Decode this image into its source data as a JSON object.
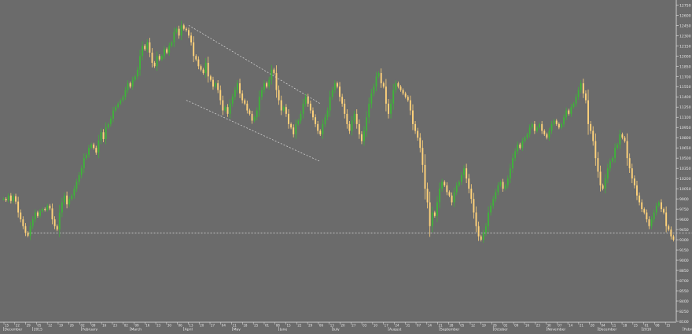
{
  "colors": {
    "background": "#6b6b6b",
    "up": "#3fb23a",
    "down": "#ffd27a",
    "axis": "#e8e8e8",
    "support_line": "#cfcfcf",
    "channel_line": "#cfcfcf"
  },
  "chart_data": {
    "type": "candlestick",
    "title": "",
    "xlabel": "",
    "ylabel": "",
    "grid": false,
    "legend": "none",
    "ylim": [
      8100,
      12800
    ],
    "y_ticks": [
      8100,
      8250,
      8400,
      8550,
      8700,
      8850,
      9000,
      9150,
      9300,
      9450,
      9600,
      9750,
      9900,
      10050,
      10200,
      10350,
      10500,
      10650,
      10800,
      10950,
      11100,
      11250,
      11400,
      11550,
      11700,
      11850,
      12000,
      12150,
      12300,
      12450,
      12600,
      12750
    ],
    "y_tick_labels": [
      "8100",
      "8250",
      "8400",
      "8550",
      "8700",
      "8850",
      "9000",
      "9150",
      "9300",
      "9450",
      "9600",
      "9750",
      "9900",
      "10050",
      "10200",
      "10350",
      "10500",
      "10650",
      "10800",
      "10950",
      "11100",
      "11250",
      "11400",
      "11550",
      "11700",
      "11850",
      "12000",
      "12150",
      "12300",
      "12450",
      "12600",
      "12750"
    ],
    "month_labels": [
      {
        "label": "December",
        "bar": 0
      },
      {
        "label": "2015",
        "bar": 12
      },
      {
        "label": "February",
        "bar": 32
      },
      {
        "label": "March",
        "bar": 52
      },
      {
        "label": "April",
        "bar": 74
      },
      {
        "label": "May",
        "bar": 94
      },
      {
        "label": "June",
        "bar": 113
      },
      {
        "label": "July",
        "bar": 135
      },
      {
        "label": "August",
        "bar": 158
      },
      {
        "label": "September",
        "bar": 179
      },
      {
        "label": "October",
        "bar": 201
      },
      {
        "label": "November",
        "bar": 223
      },
      {
        "label": "December",
        "bar": 244
      },
      {
        "label": "2016",
        "bar": 262
      },
      {
        "label": "February",
        "bar": 279
      }
    ],
    "day_labels": [
      "15",
      "22",
      "29",
      "05",
      "12",
      "19",
      "26",
      "02",
      "09",
      "16",
      "23",
      "02",
      "09",
      "16",
      "23",
      "30",
      "06",
      "13",
      "20",
      "27",
      "04",
      "11",
      "18",
      "25",
      "01",
      "08",
      "15",
      "22",
      "29",
      "06",
      "13",
      "20",
      "27",
      "03",
      "10",
      "17",
      "24",
      "31",
      "07",
      "14",
      "21",
      "28",
      "05",
      "12",
      "19",
      "26",
      "02",
      "09",
      "16",
      "23",
      "30",
      "07",
      "14",
      "21",
      "28",
      "04",
      "11",
      "18",
      "25",
      "01",
      "08",
      "15"
    ],
    "closes": [
      9900,
      9880,
      9950,
      9870,
      9940,
      9860,
      9700,
      9600,
      9500,
      9400,
      9360,
      9500,
      9600,
      9700,
      9650,
      9720,
      9750,
      9740,
      9800,
      9760,
      9600,
      9500,
      9450,
      9700,
      9850,
      9950,
      9820,
      9900,
      9950,
      10050,
      10150,
      10250,
      10350,
      10500,
      10550,
      10650,
      10700,
      10650,
      10580,
      10760,
      10880,
      10780,
      10950,
      11000,
      11080,
      11200,
      11250,
      11300,
      11350,
      11400,
      11500,
      11600,
      11550,
      11650,
      11700,
      11800,
      12000,
      12150,
      12100,
      12200,
      12050,
      11900,
      11850,
      12000,
      11950,
      12000,
      12100,
      12050,
      12150,
      12200,
      12350,
      12400,
      12300,
      12450,
      12400,
      12380,
      12300,
      12200,
      12000,
      11950,
      11850,
      11800,
      11750,
      11900,
      11700,
      11650,
      11550,
      11600,
      11500,
      11350,
      11200,
      11250,
      11150,
      11300,
      11400,
      11500,
      11600,
      11450,
      11350,
      11300,
      11200,
      11150,
      11050,
      11100,
      11200,
      11400,
      11500,
      11600,
      11550,
      11650,
      11800,
      11750,
      11500,
      11350,
      11200,
      11250,
      11150,
      11000,
      10950,
      10850,
      11000,
      11050,
      11150,
      11300,
      11400,
      11300,
      11200,
      11100,
      11000,
      10900,
      10850,
      11000,
      11100,
      11200,
      11400,
      11500,
      11600,
      11550,
      11400,
      11300,
      11150,
      11000,
      10900,
      11050,
      11150,
      11000,
      10850,
      10750,
      10900,
      11100,
      11300,
      11450,
      11550,
      11700,
      11750,
      11600,
      11550,
      11300,
      11150,
      11300,
      11500,
      11600,
      11550,
      11500,
      11450,
      11400,
      11350,
      11200,
      11000,
      10900,
      10800,
      10650,
      10400,
      10050,
      9850,
      9500,
      9700,
      9650,
      9850,
      10050,
      10150,
      10100,
      10000,
      9950,
      9850,
      10000,
      10100,
      10150,
      10250,
      10350,
      10200,
      10050,
      9900,
      9700,
      9500,
      9350,
      9300,
      9400,
      9500,
      9700,
      9800,
      9900,
      10000,
      10100,
      10150,
      10050,
      10100,
      10200,
      10350,
      10500,
      10600,
      10700,
      10650,
      10750,
      10800,
      10850,
      10950,
      11000,
      10900,
      10950,
      11000,
      10900,
      10850,
      10800,
      10900,
      11000,
      11050,
      11000,
      10950,
      11000,
      11100,
      11200,
      11150,
      11250,
      11300,
      11400,
      11500,
      11600,
      11450,
      11350,
      11000,
      10900,
      10750,
      10500,
      10300,
      10100,
      10050,
      10200,
      10350,
      10450,
      10500,
      10650,
      10700,
      10850,
      10800,
      10750,
      10500,
      10350,
      10200,
      10100,
      9950,
      9850,
      9750,
      9700,
      9600,
      9500,
      9600,
      9700,
      9800,
      9850,
      9750,
      9700,
      9500,
      9450,
      9350,
      9300
    ],
    "annotations": [
      {
        "type": "horizontal_line",
        "value": 9400,
        "style": "dotted",
        "from_bar": 10,
        "to_bar": 286
      },
      {
        "type": "trend_line",
        "style": "dotted",
        "from": {
          "bar": 76,
          "value": 12450
        },
        "to": {
          "bar": 130,
          "value": 11300
        }
      },
      {
        "type": "trend_line",
        "style": "dotted",
        "from": {
          "bar": 75,
          "value": 11350
        },
        "to": {
          "bar": 130,
          "value": 10450
        }
      }
    ]
  }
}
